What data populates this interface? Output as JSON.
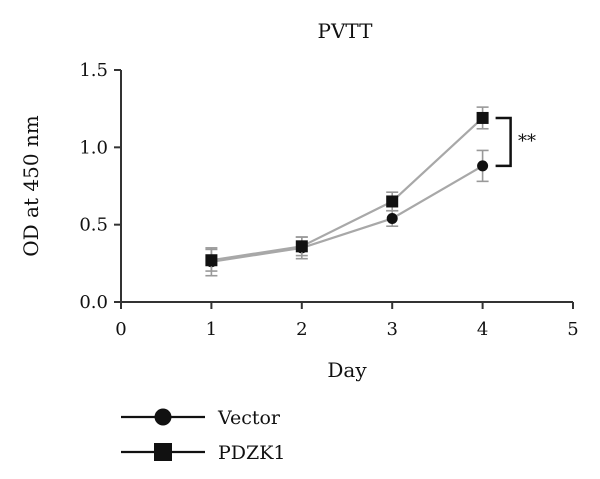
{
  "chart_data": {
    "type": "line",
    "title": "PVTT",
    "xlabel": "Day",
    "ylabel": "OD at 450 nm",
    "xlim": [
      0,
      5
    ],
    "ylim": [
      0,
      1.5
    ],
    "xticks": [
      "0",
      "1",
      "2",
      "3",
      "4",
      "5"
    ],
    "yticks": [
      "0.0",
      "0.5",
      "1.0",
      "1.5"
    ],
    "x": [
      1,
      2,
      3,
      4
    ],
    "series": [
      {
        "name": "Vector",
        "marker": "circle",
        "values": [
          0.26,
          0.35,
          0.54,
          0.88
        ],
        "errors": [
          0.09,
          0.07,
          0.05,
          0.1
        ]
      },
      {
        "name": "PDZK1",
        "marker": "square",
        "values": [
          0.27,
          0.36,
          0.65,
          1.19
        ],
        "errors": [
          0.07,
          0.06,
          0.06,
          0.07
        ]
      }
    ],
    "annotation": "**",
    "grid": false,
    "legend_position": "bottom-left",
    "colors": {
      "line": "#a8a8a8",
      "marker": "#111111",
      "axis": "#333333",
      "error": "#999999"
    }
  }
}
